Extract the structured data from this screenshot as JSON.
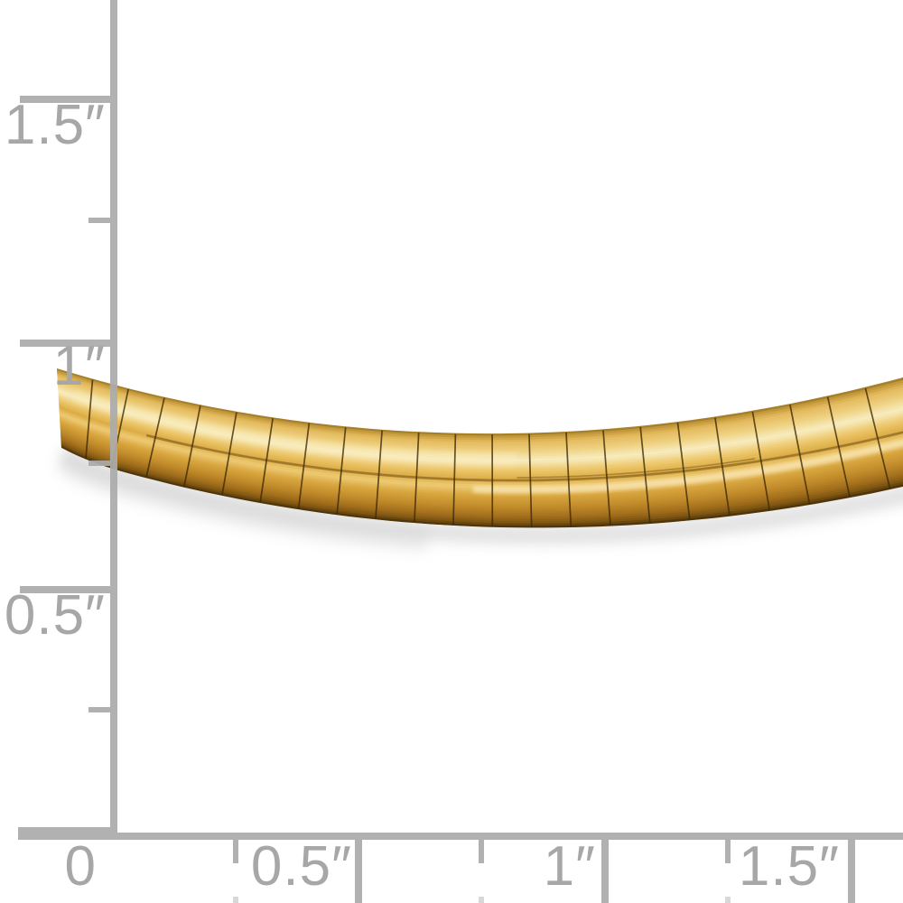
{
  "photo": {
    "description": "14k yellow gold omega chain necklace on white background with inch scale ruler",
    "background_color": "#ffffff"
  },
  "ruler": {
    "unit": "inches",
    "tick_color": "#acacac",
    "faint_tick_color": "#d6d6d6",
    "label_color": "#a7a7a7",
    "vertical": {
      "labels": [
        {
          "text": "1.5″"
        },
        {
          "text": "1″"
        },
        {
          "text": "0.5″"
        }
      ]
    },
    "horizontal": {
      "labels": [
        {
          "text": "0"
        },
        {
          "text": "0.5″"
        },
        {
          "text": "1″"
        },
        {
          "text": "1.5″"
        }
      ]
    }
  },
  "chain": {
    "name": "gold-omega-chain",
    "geometry": {
      "p0": [
        63,
        408
      ],
      "c": [
        518,
        547
      ],
      "p2": [
        1000,
        418
      ],
      "width_start": 88,
      "width_end": 118,
      "end_vector": [
        0.057,
        0.999
      ],
      "segments": 23,
      "samples": 64,
      "bands": 44
    },
    "colors": {
      "stops": [
        [
          0.0,
          "#7c5a16"
        ],
        [
          0.03,
          "#b98f33"
        ],
        [
          0.1,
          "#e4ba5d"
        ],
        [
          0.2,
          "#efd283"
        ],
        [
          0.3,
          "#f8ecc0"
        ],
        [
          0.4,
          "#edc96f"
        ],
        [
          0.5,
          "#dcac44"
        ],
        [
          0.58,
          "#eecb74"
        ],
        [
          0.68,
          "#d8a53e"
        ],
        [
          0.8,
          "#c08a2a"
        ],
        [
          0.9,
          "#a06c1b"
        ],
        [
          0.96,
          "#7c5412"
        ],
        [
          1.0,
          "#4f350a"
        ]
      ],
      "segment_line": "#3d2906",
      "crease": "#5f4210",
      "specular": "#fff3cf",
      "sheen": "#fbeebd",
      "shadow": "#c9c9c9"
    }
  }
}
